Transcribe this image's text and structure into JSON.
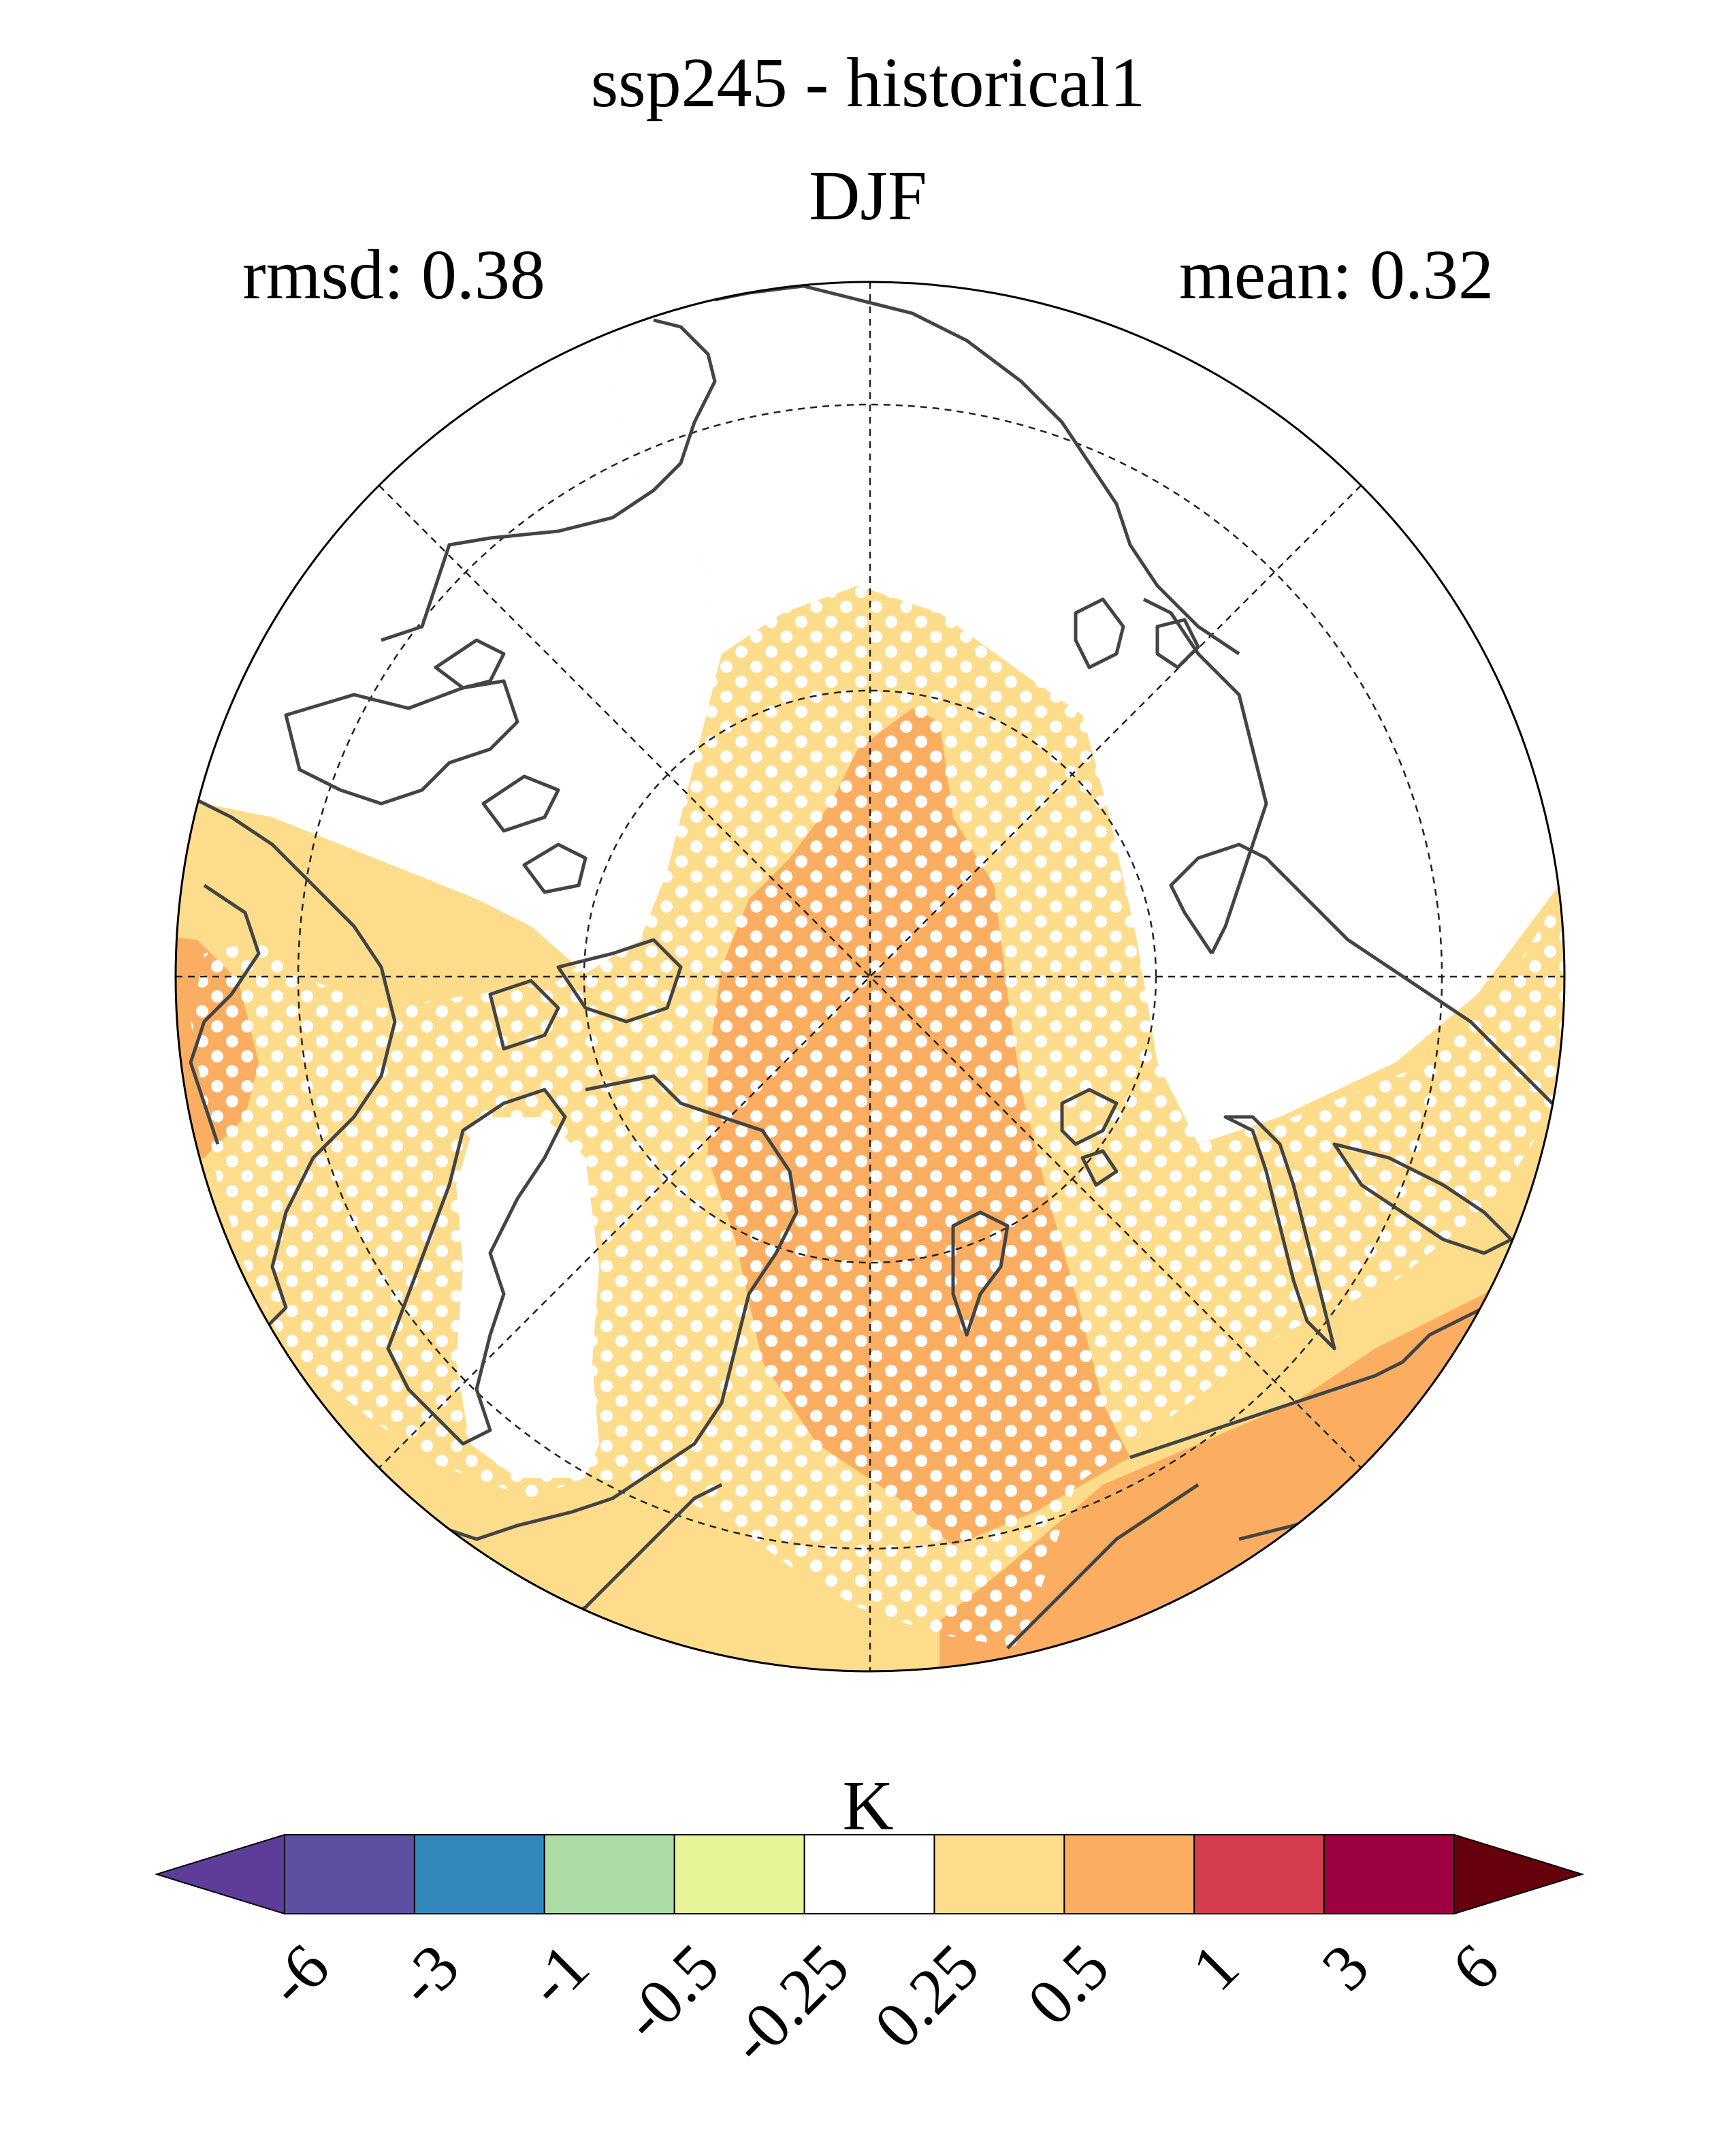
{
  "title": "ssp245 - historical1",
  "season": "DJF",
  "rmsd_label": "rmsd: 0.38",
  "mean_label": "mean: 0.32",
  "map": {
    "projection": "north-polar-stereographic",
    "coastline_color": "#404040",
    "stippling": "white dots mark significant regions",
    "regions": [
      {
        "name": "north-atlantic-eurasia",
        "bin": "0.25 to 0.5",
        "color": "#fddc8b"
      },
      {
        "name": "central-arctic-siberia-tongue",
        "bin": "0.5 to 1",
        "color": "#fbae61"
      },
      {
        "name": "east-asia",
        "bin": "0.5 to 1",
        "color": "#fbae61"
      },
      {
        "name": "north-america-pacific",
        "bin": "-0.25 to 0.25",
        "color": "#ffffff"
      }
    ]
  },
  "colorbar": {
    "unit": "K",
    "ticks": [
      "-6",
      "-3",
      "-1",
      "-0.5",
      "-0.25",
      "0.25",
      "0.5",
      "1",
      "3",
      "6"
    ],
    "colors": [
      "#5e3c99",
      "#5e4fa2",
      "#3288bd",
      "#abdda4",
      "#e6f598",
      "#ffffff",
      "#fddc8b",
      "#fbae61",
      "#d53e4f",
      "#9e0142",
      "#67000d"
    ],
    "extend": "both"
  }
}
